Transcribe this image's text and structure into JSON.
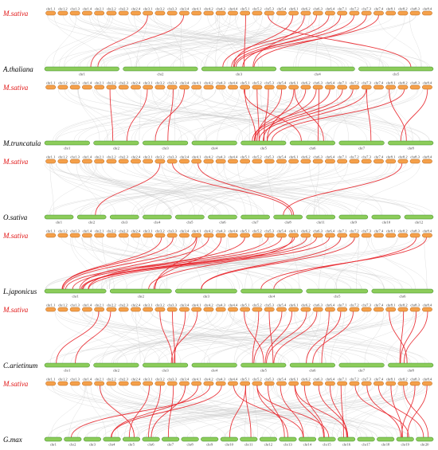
{
  "colors": {
    "reference_chromosome": "#f5a04a",
    "reference_outline": "#b5661d",
    "target_chromosome": "#8ccc5a",
    "target_outline": "#3f8a2a",
    "background_links": "#c8c8c8",
    "highlight_links": "#e8232a",
    "reference_label": "#e01414"
  },
  "reference": {
    "species": "M.sativa",
    "chromosomes": [
      "chr1.1",
      "chr1.2",
      "chr1.3",
      "chr1.4",
      "chr2.1",
      "chr2.2",
      "chr2.3",
      "chr2.4",
      "chr3.1",
      "chr3.2",
      "chr3.3",
      "chr3.4",
      "chr4.1",
      "chr4.2",
      "chr4.3",
      "chr4.4",
      "chr5.1",
      "chr5.2",
      "chr5.3",
      "chr5.4",
      "chr6.1",
      "chr6.2",
      "chr6.3",
      "chr6.4",
      "chr7.1",
      "chr7.2",
      "chr7.3",
      "chr7.4",
      "chr8.1",
      "chr8.2",
      "chr8.3",
      "chr8.4"
    ]
  },
  "panels": [
    {
      "ref_label": "M.sativa",
      "species": "A.thaliana",
      "chromosomes": [
        "chr1",
        "chr2",
        "chr3",
        "chr4",
        "chr5"
      ],
      "links": [
        [
          8,
          1
        ],
        [
          11,
          1
        ],
        [
          16,
          3
        ],
        [
          20,
          3
        ],
        [
          21,
          3
        ],
        [
          22,
          3
        ],
        [
          23,
          3
        ],
        [
          24,
          3
        ],
        [
          25,
          3
        ],
        [
          26,
          3
        ],
        [
          27,
          3
        ],
        [
          18,
          5
        ]
      ]
    },
    {
      "ref_label": "M.sativa",
      "species": "M.truncatula",
      "chromosomes": [
        "chr1",
        "chr2",
        "chr3",
        "chr4",
        "chr5",
        "chr6",
        "chr7",
        "chr8"
      ],
      "links": [
        [
          5,
          2
        ],
        [
          8,
          2
        ],
        [
          10,
          3
        ],
        [
          11,
          3
        ],
        [
          16,
          5
        ],
        [
          17,
          5
        ],
        [
          18,
          5
        ],
        [
          19,
          5
        ],
        [
          20,
          5
        ],
        [
          21,
          5
        ],
        [
          22,
          5
        ],
        [
          23,
          5
        ],
        [
          24,
          5
        ],
        [
          25,
          5
        ],
        [
          26,
          5
        ],
        [
          29,
          5
        ],
        [
          16,
          6
        ],
        [
          20,
          6
        ],
        [
          22,
          6
        ],
        [
          26,
          7
        ],
        [
          28,
          8
        ],
        [
          31,
          8
        ]
      ]
    },
    {
      "ref_label": "M.sativa",
      "species": "O.sativa",
      "chromosomes": [
        "chr1",
        "chr2",
        "chr3",
        "chr4",
        "chr5",
        "chr6",
        "chr7",
        "chr8",
        "chr11",
        "chr9",
        "chr10",
        "chr12"
      ],
      "links": [
        [
          9,
          2
        ],
        [
          10,
          8
        ],
        [
          12,
          8
        ],
        [
          29,
          8
        ]
      ]
    },
    {
      "ref_label": "M.sativa",
      "species": "L.japonicus",
      "chromosomes": [
        "chr1",
        "chr2",
        "chr3",
        "chr4",
        "chr5",
        "chr6"
      ],
      "links": [
        [
          9,
          1
        ],
        [
          10,
          1
        ],
        [
          12,
          1
        ],
        [
          13,
          1
        ],
        [
          16,
          1
        ],
        [
          18,
          1
        ],
        [
          19,
          1
        ],
        [
          20,
          1
        ],
        [
          21,
          1
        ],
        [
          22,
          1
        ],
        [
          23,
          1
        ],
        [
          12,
          2
        ],
        [
          14,
          2
        ],
        [
          20,
          2
        ],
        [
          24,
          3
        ],
        [
          25,
          3
        ],
        [
          30,
          4
        ],
        [
          31,
          4
        ]
      ]
    },
    {
      "ref_label": "M.sativa",
      "species": "C.arietinum",
      "chromosomes": [
        "chr1",
        "chr2",
        "chr3",
        "chr4",
        "chr5",
        "chr6",
        "chr7",
        "chr8"
      ],
      "links": [
        [
          4,
          1
        ],
        [
          5,
          1
        ],
        [
          9,
          3
        ],
        [
          10,
          3
        ],
        [
          11,
          3
        ],
        [
          12,
          3
        ],
        [
          16,
          5
        ],
        [
          17,
          5
        ],
        [
          18,
          5
        ],
        [
          19,
          5
        ],
        [
          20,
          5
        ],
        [
          21,
          5
        ],
        [
          22,
          5
        ],
        [
          23,
          6
        ],
        [
          24,
          6
        ],
        [
          25,
          6
        ],
        [
          28,
          8
        ],
        [
          29,
          8
        ],
        [
          30,
          8
        ],
        [
          31,
          8
        ]
      ]
    },
    {
      "ref_label": "M.sativa",
      "species": "G.max",
      "chromosomes": [
        "chr1",
        "chr2",
        "chr3",
        "chr4",
        "chr5",
        "chr6",
        "chr7",
        "chr8",
        "chr9",
        "chr10",
        "chr11",
        "chr12",
        "chr13",
        "chr14",
        "chr15",
        "chr16",
        "chr17",
        "chr18",
        "chr19",
        "chr20"
      ],
      "links": [
        [
          4,
          5
        ],
        [
          8,
          5
        ],
        [
          9,
          6
        ],
        [
          12,
          4
        ],
        [
          13,
          2
        ],
        [
          16,
          10
        ],
        [
          16,
          11
        ],
        [
          17,
          13
        ],
        [
          18,
          13
        ],
        [
          19,
          14
        ],
        [
          20,
          15
        ],
        [
          21,
          15
        ],
        [
          22,
          16
        ],
        [
          23,
          16
        ],
        [
          24,
          16
        ],
        [
          25,
          19
        ],
        [
          26,
          19
        ],
        [
          27,
          20
        ],
        [
          28,
          19
        ],
        [
          29,
          20
        ],
        [
          30,
          19
        ],
        [
          31,
          19
        ],
        [
          20,
          16
        ],
        [
          17,
          15
        ],
        [
          15,
          14
        ],
        [
          14,
          4
        ],
        [
          11,
          6
        ],
        [
          10,
          7
        ]
      ]
    }
  ]
}
